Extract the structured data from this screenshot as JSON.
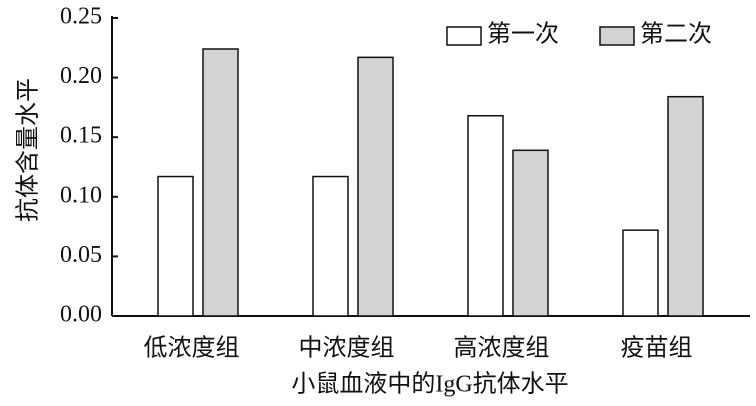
{
  "chart_data": {
    "type": "bar",
    "ylabel": "抗体含量水平",
    "xlabel": "小鼠血液中的IgG抗体水平",
    "categories": [
      "低浓度组",
      "中浓度组",
      "高浓度组",
      "疫苗组"
    ],
    "series": [
      {
        "name": "第一次",
        "color": "#ffffff",
        "values": [
          0.117,
          0.117,
          0.168,
          0.072
        ]
      },
      {
        "name": "第二次",
        "color": "#d3d3d3",
        "values": [
          0.224,
          0.217,
          0.139,
          0.184
        ]
      }
    ],
    "ylim": [
      0,
      0.25
    ],
    "yticks": [
      {
        "value": 0,
        "label": "0.00"
      },
      {
        "value": 0.05,
        "label": "0.05"
      },
      {
        "value": 0.1,
        "label": "0.10"
      },
      {
        "value": 0.15,
        "label": "0.15"
      },
      {
        "value": 0.2,
        "label": "0.20"
      },
      {
        "value": 0.25,
        "label": "0.25"
      }
    ],
    "legend": "top-right"
  }
}
